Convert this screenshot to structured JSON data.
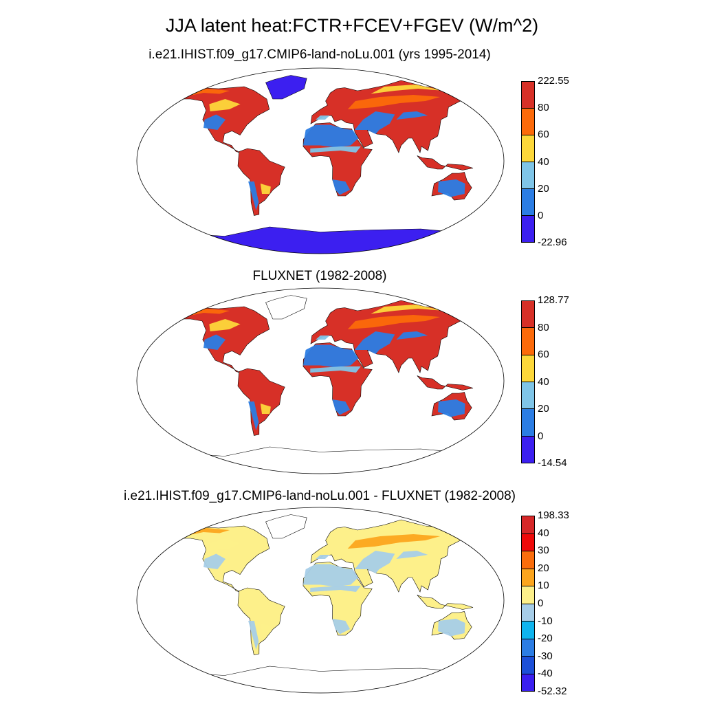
{
  "figure": {
    "title": "JJA latent heat:FCTR+FCEV+FGEV (W/m^2)"
  },
  "panels": [
    {
      "title": "i.e21.IHIST.f09_g17.CMIP6-land-noLu.001 (yrs 1995-2014)",
      "colorbar": {
        "labels": [
          "222.55",
          "80",
          "60",
          "40",
          "20",
          "0",
          "-22.96"
        ],
        "colors": [
          "#d73027",
          "#fc6a0a",
          "#fdd83a",
          "#7fc5e8",
          "#2b7de4",
          "#3c1ff0"
        ]
      },
      "fields": {
        "land": "#d73027",
        "ocean_bg": "#ffffff",
        "dry": "#2b7de4",
        "semi": "#fc6a0a",
        "mid": "#fdd83a",
        "light": "#7fc5e8",
        "ice": "#3c1ff0"
      }
    },
    {
      "title": "FLUXNET (1982-2008)",
      "colorbar": {
        "labels": [
          "128.77",
          "80",
          "60",
          "40",
          "20",
          "0",
          "-14.54"
        ],
        "colors": [
          "#d73027",
          "#fc6a0a",
          "#fdd83a",
          "#7fc5e8",
          "#2b7de4",
          "#3c1ff0"
        ]
      },
      "fields": {
        "land": "#d73027",
        "ocean_bg": "#ffffff",
        "dry": "#2b7de4",
        "semi": "#fc6a0a",
        "mid": "#fdd83a",
        "light": "#7fc5e8",
        "ice": "#ffffff"
      }
    },
    {
      "title": "i.e21.IHIST.f09_g17.CMIP6-land-noLu.001 - FLUXNET (1982-2008)",
      "colorbar": {
        "labels": [
          "198.33",
          "40",
          "30",
          "20",
          "10",
          "0",
          "-10",
          "-20",
          "-30",
          "-40",
          "-52.32"
        ],
        "colors": [
          "#d62728",
          "#ee0a0a",
          "#fa6d0c",
          "#fca51e",
          "#fdf08a",
          "#a6cde8",
          "#0fb4ee",
          "#2c7de4",
          "#1c4fd8",
          "#3a1ff0"
        ]
      },
      "fields": {
        "land": "#fdf08a",
        "ocean_bg": "#ffffff",
        "dry": "#a6cde8",
        "semi": "#fca51e",
        "mid": "#fdf08a",
        "light": "#a6cde8",
        "ice": "#ffffff"
      }
    }
  ]
}
